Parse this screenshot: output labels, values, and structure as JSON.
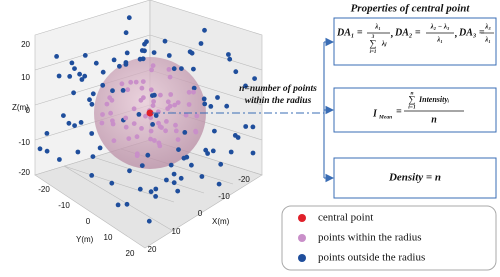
{
  "plot": {
    "z_label": "Z(m)",
    "y_label": "Y(m)",
    "x_label": "X(m)",
    "z_ticks": [
      "20",
      "10",
      "0",
      "-10",
      "-20"
    ],
    "y_ticks": [
      "-20",
      "-10",
      "0",
      "10",
      "20"
    ],
    "x_ticks": [
      "-20",
      "-10",
      "0",
      "10",
      "20"
    ]
  },
  "annotation": {
    "line1": "n=number of points",
    "line2": "within the radius"
  },
  "panel": {
    "title": "Properties of central point",
    "formula1": [
      {
        "lhs": "DA₁ =",
        "num": "λ₁",
        "sum_upper": "3",
        "sum_symbol": "∑",
        "sum_lower": "i=1",
        "den": "λⱼ",
        "sep": ","
      },
      {
        "lhs": "DA₂ =",
        "num": "λ₂ − λ₃",
        "den": "λ₁",
        "sep": ","
      },
      {
        "lhs": "DA₃ =",
        "num": "λ₃",
        "den": "λ₁"
      }
    ],
    "formula2": {
      "lhs": "I",
      "lhs_sub": "Mean",
      "eq": "=",
      "sum_upper": "n",
      "sum_symbol": "∑",
      "sum_lower": "i=1",
      "num": "Intensityᵢ",
      "den": "n"
    },
    "formula3": "Density = n"
  },
  "legend": [
    {
      "label": "central point",
      "color": "#e0202a"
    },
    {
      "label": "points within the radius",
      "color": "#c98fc9"
    },
    {
      "label": "points outside the radius",
      "color": "#1f4e9c"
    }
  ]
}
